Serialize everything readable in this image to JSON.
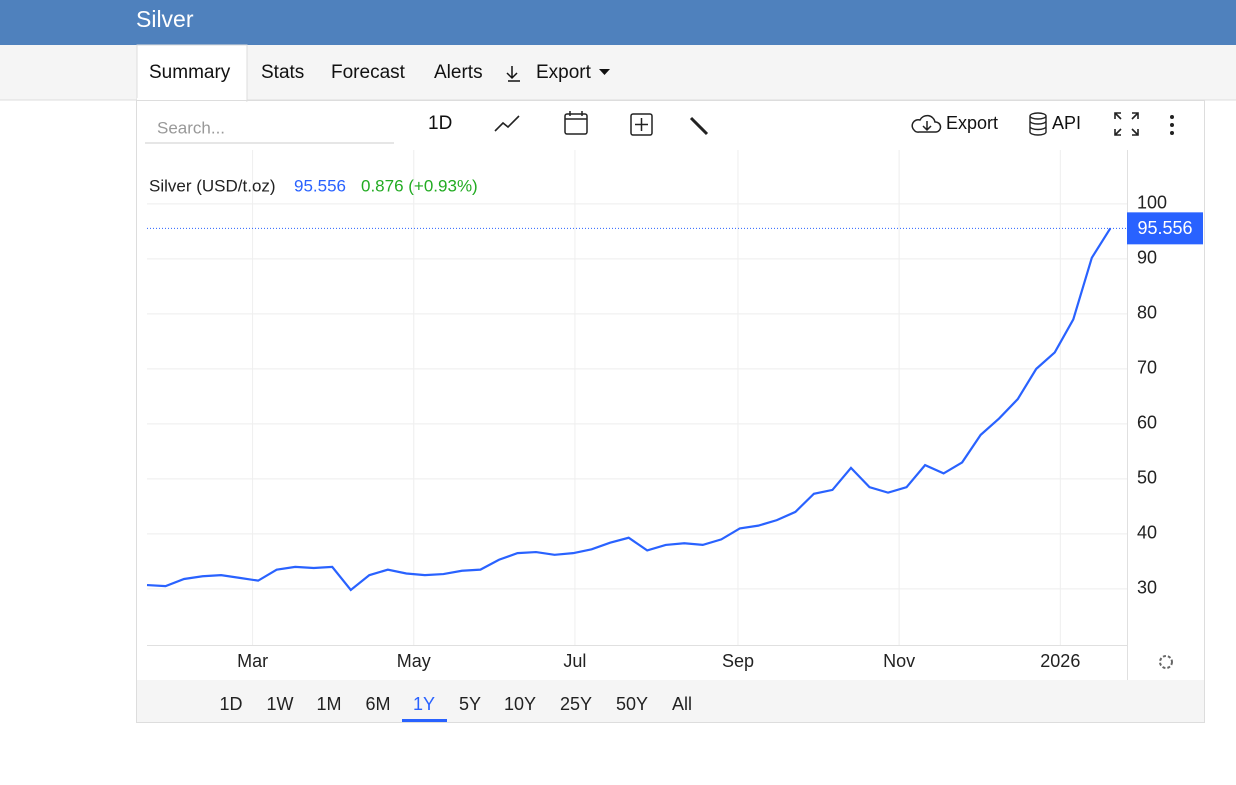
{
  "header": {
    "title": "Silver"
  },
  "tabs": [
    "Summary",
    "Stats",
    "Forecast",
    "Alerts",
    "Export"
  ],
  "toolbar": {
    "search": "Search...",
    "interval": "1D",
    "export": "Export",
    "api": "API"
  },
  "ranges": [
    "1D",
    "1W",
    "1M",
    "6M",
    "1Y",
    "5Y",
    "10Y",
    "25Y",
    "50Y",
    "All"
  ],
  "legend": {
    "name": "Silver (USD/t.oz)",
    "change": "0.876 (+0.93%)"
  },
  "chart_data": {
    "type": "line",
    "series": [
      {
        "name": "Silver (USD/t.oz)",
        "color": "#2962ff",
        "values": [
          30.7,
          30.5,
          31.8,
          32.3,
          32.5,
          32.0,
          31.5,
          33.5,
          34.0,
          33.8,
          34.0,
          29.8,
          32.5,
          33.5,
          32.8,
          32.5,
          32.7,
          33.3,
          33.5,
          35.3,
          36.5,
          36.7,
          36.2,
          36.5,
          37.2,
          38.4,
          39.3,
          37.0,
          38.0,
          38.3,
          38.0,
          39.0,
          41.0,
          41.5,
          42.5,
          44.0,
          47.3,
          48.0,
          52.0,
          48.5,
          47.5,
          48.5,
          52.5,
          51.0,
          53.0,
          58.0,
          61.0,
          64.5,
          70.0,
          73.0,
          79.0,
          90.2,
          95.556
        ]
      }
    ],
    "xlim": [
      0,
      52.9
    ],
    "xticks": [
      {
        "value": 5.7,
        "label": "Mar"
      },
      {
        "value": 14.4,
        "label": "May"
      },
      {
        "value": 23.1,
        "label": "Jul"
      },
      {
        "value": 31.9,
        "label": "Sep"
      },
      {
        "value": 40.6,
        "label": "Nov"
      },
      {
        "value": 49.3,
        "label": "2026"
      }
    ],
    "ylim": [
      19.8,
      109.8
    ],
    "yticks": [
      30,
      40,
      50,
      60,
      70,
      80,
      90,
      100
    ],
    "grid": true
  }
}
